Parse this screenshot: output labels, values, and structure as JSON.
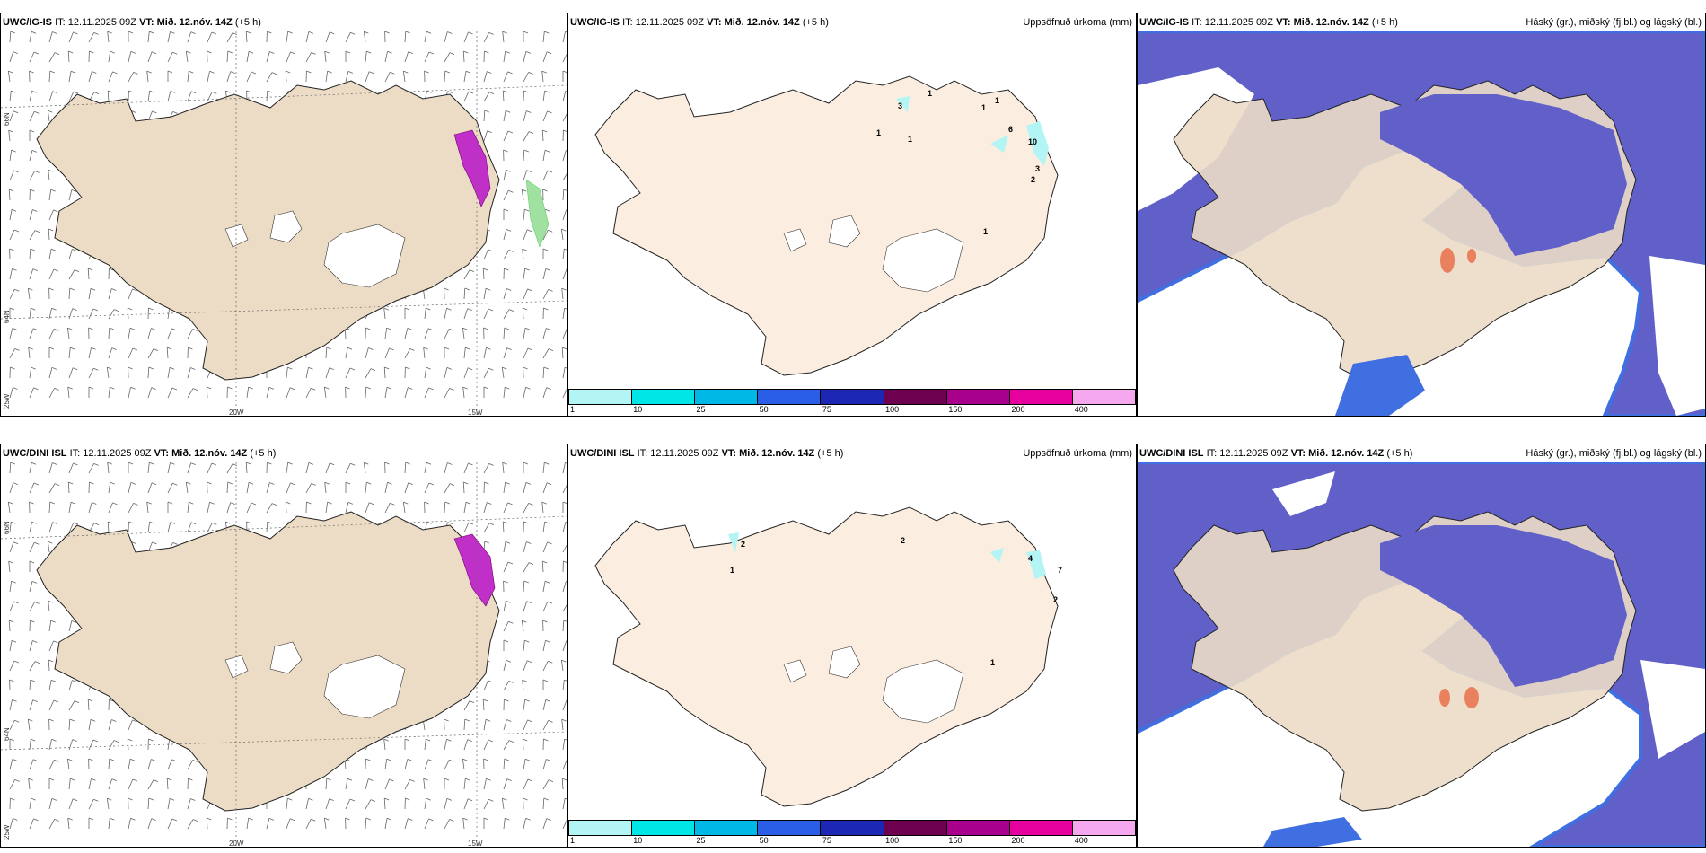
{
  "rows": [
    {
      "model": "UWC/IG-IS",
      "it_label": "IT:",
      "it": "12.11.2025 09Z",
      "vt_label": "VT:",
      "vt": "Mið. 12.nóv. 14Z",
      "lead": "(+5 h)",
      "precip_numbers": [
        "3",
        "1",
        "1",
        "1",
        "1",
        "6",
        "10",
        "3",
        "2",
        "1",
        "1"
      ],
      "coastal_lat_labels": [
        "66N",
        "64N"
      ]
    },
    {
      "model": "UWC/DINI ISL",
      "it_label": "IT:",
      "it": "12.11.2025 09Z",
      "vt_label": "VT:",
      "vt": "Mið. 12.nóv. 14Z",
      "lead": "(+5 h)",
      "precip_numbers": [
        "2",
        "2",
        "1",
        "4",
        "7",
        "2",
        "1"
      ],
      "coastal_lat_labels": [
        "66N",
        "64N"
      ]
    }
  ],
  "panel_titles": {
    "precip": "Uppsöfnuð úrkoma (mm)",
    "cloud": "Háský (gr.), miðský (fj.bl.) og lágský (bl.)"
  },
  "wind_axis": {
    "lat_labels": [
      "66N",
      "64N"
    ],
    "lon_labels": [
      "25W",
      "20W",
      "15W"
    ]
  },
  "colorbar": {
    "ticks": [
      "1",
      "10",
      "25",
      "50",
      "75",
      "100",
      "150",
      "200",
      "400"
    ],
    "colors": [
      "#b3f5f5",
      "#00e5e5",
      "#00b8e6",
      "#2a5ee6",
      "#1c28b4",
      "#6e0050",
      "#a8008c",
      "#e6009e",
      "#f5a8ee"
    ]
  },
  "colors": {
    "land": "#ecdcc6",
    "land_precip": "#fbeee0",
    "glacier": "#ffffff",
    "cloud_high": "#6060c8",
    "cloud_edge": "#3f6fe0",
    "cloud_light": "#a8c8f0",
    "sea": "#ffffff"
  }
}
